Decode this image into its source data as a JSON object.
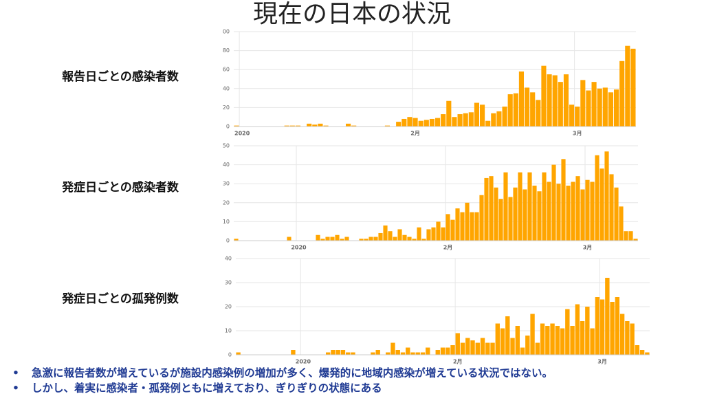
{
  "title": "現在の日本の状況",
  "bullets": [
    "急激に報告者数が増えているが施設内感染例の増加が多く、爆発的に地域内感染が増えている状況ではない。",
    "しかし、着実に感染者・孤発例ともに増えており、ぎりぎりの状態にある"
  ],
  "chart_data": [
    {
      "type": "bar",
      "title": "報告日ごとの感染者数",
      "color": "#ffa500",
      "grid": true,
      "ylim": [
        0,
        100
      ],
      "yticks": [
        0,
        20,
        40,
        60,
        80,
        {
          "value": 100,
          "label": "00"
        }
      ],
      "categories": [
        null,
        "2020",
        null,
        null,
        null,
        null,
        null,
        null,
        null,
        null,
        null,
        null,
        null,
        null,
        null,
        null,
        null,
        null,
        null,
        null,
        null,
        null,
        null,
        null,
        null,
        null,
        null,
        null,
        null,
        null,
        null,
        null,
        "2月",
        null,
        null,
        null,
        null,
        null,
        null,
        null,
        null,
        null,
        null,
        null,
        null,
        null,
        null,
        null,
        null,
        null,
        null,
        null,
        null,
        null,
        null,
        null,
        null,
        null,
        null,
        null,
        null,
        "3月",
        null,
        null,
        null,
        null,
        null,
        null,
        null,
        null,
        null,
        null
      ],
      "values": [
        1,
        0,
        0,
        0,
        0,
        0,
        0,
        0,
        0,
        1,
        1,
        1,
        0,
        3,
        2,
        3,
        1,
        0,
        0,
        0,
        3,
        1,
        0,
        0,
        0,
        0,
        0,
        1,
        0,
        5,
        8,
        10,
        9,
        6,
        7,
        8,
        9,
        13,
        27,
        10,
        13,
        14,
        15,
        25,
        23,
        6,
        14,
        16,
        21,
        34,
        35,
        58,
        41,
        36,
        28,
        64,
        55,
        54,
        47,
        55,
        23,
        21,
        49,
        38,
        47,
        40,
        41,
        36,
        39,
        69,
        85,
        82
      ]
    },
    {
      "type": "bar",
      "title": "発症日ごとの感染者数",
      "color": "#ffa500",
      "grid": true,
      "ylim": [
        0,
        50
      ],
      "yticks": [
        0,
        10,
        20,
        30,
        40,
        50
      ],
      "categories": [
        null,
        null,
        null,
        null,
        null,
        null,
        null,
        null,
        null,
        null,
        null,
        null,
        null,
        "2020",
        null,
        null,
        null,
        null,
        null,
        null,
        null,
        null,
        null,
        null,
        null,
        null,
        null,
        null,
        null,
        null,
        null,
        null,
        null,
        null,
        null,
        null,
        null,
        null,
        null,
        null,
        null,
        null,
        null,
        null,
        "2月",
        null,
        null,
        null,
        null,
        null,
        null,
        null,
        null,
        null,
        null,
        null,
        null,
        null,
        null,
        null,
        null,
        null,
        null,
        null,
        null,
        null,
        null,
        null,
        null,
        null,
        null,
        null,
        null,
        "3月",
        null,
        null,
        null,
        null,
        null,
        null,
        null,
        null,
        null,
        null
      ],
      "values": [
        1,
        0,
        0,
        0,
        0,
        0,
        0,
        0,
        0,
        0,
        0,
        2,
        0,
        0,
        0,
        0,
        0,
        3,
        1,
        2,
        2,
        3,
        1,
        2,
        0,
        0,
        1,
        1,
        2,
        2,
        4,
        8,
        5,
        2,
        6,
        3,
        2,
        1,
        7,
        1,
        6,
        7,
        10,
        7,
        14,
        11,
        17,
        15,
        20,
        15,
        15,
        24,
        33,
        34,
        28,
        22,
        36,
        23,
        28,
        36,
        27,
        36,
        29,
        26,
        36,
        31,
        40,
        30,
        43,
        29,
        31,
        34,
        27,
        32,
        31,
        45,
        38,
        47,
        35,
        28,
        18,
        5,
        5,
        1
      ]
    },
    {
      "type": "bar",
      "title": "発症日ごとの孤発例数",
      "color": "#ffa500",
      "grid": true,
      "ylim": [
        0,
        40
      ],
      "yticks": [
        0,
        10,
        20,
        30,
        40
      ],
      "categories": [
        null,
        null,
        null,
        null,
        null,
        null,
        null,
        null,
        null,
        null,
        null,
        null,
        null,
        "2020",
        null,
        null,
        null,
        null,
        null,
        null,
        null,
        null,
        null,
        null,
        null,
        null,
        null,
        null,
        null,
        null,
        null,
        null,
        null,
        null,
        null,
        null,
        null,
        null,
        null,
        null,
        null,
        null,
        null,
        null,
        "2月",
        null,
        null,
        null,
        null,
        null,
        null,
        null,
        null,
        null,
        null,
        null,
        null,
        null,
        null,
        null,
        null,
        null,
        null,
        null,
        null,
        null,
        null,
        null,
        null,
        null,
        null,
        null,
        null,
        "3月",
        null,
        null,
        null,
        null,
        null,
        null,
        null,
        null,
        null
      ],
      "values": [
        1,
        0,
        0,
        0,
        0,
        0,
        0,
        0,
        0,
        0,
        0,
        2,
        0,
        0,
        0,
        0,
        0,
        0,
        1,
        2,
        2,
        2,
        1,
        1,
        0,
        0,
        0,
        1,
        2,
        0,
        1,
        5,
        2,
        1,
        3,
        1,
        1,
        1,
        3,
        0,
        2,
        3,
        3,
        4,
        9,
        5,
        7,
        6,
        5,
        7,
        5,
        5,
        13,
        11,
        16,
        7,
        12,
        3,
        8,
        17,
        5,
        13,
        12,
        13,
        12,
        11,
        19,
        12,
        21,
        14,
        20,
        11,
        24,
        23,
        32,
        22,
        24,
        17,
        14,
        13,
        4,
        2,
        1
      ]
    }
  ]
}
